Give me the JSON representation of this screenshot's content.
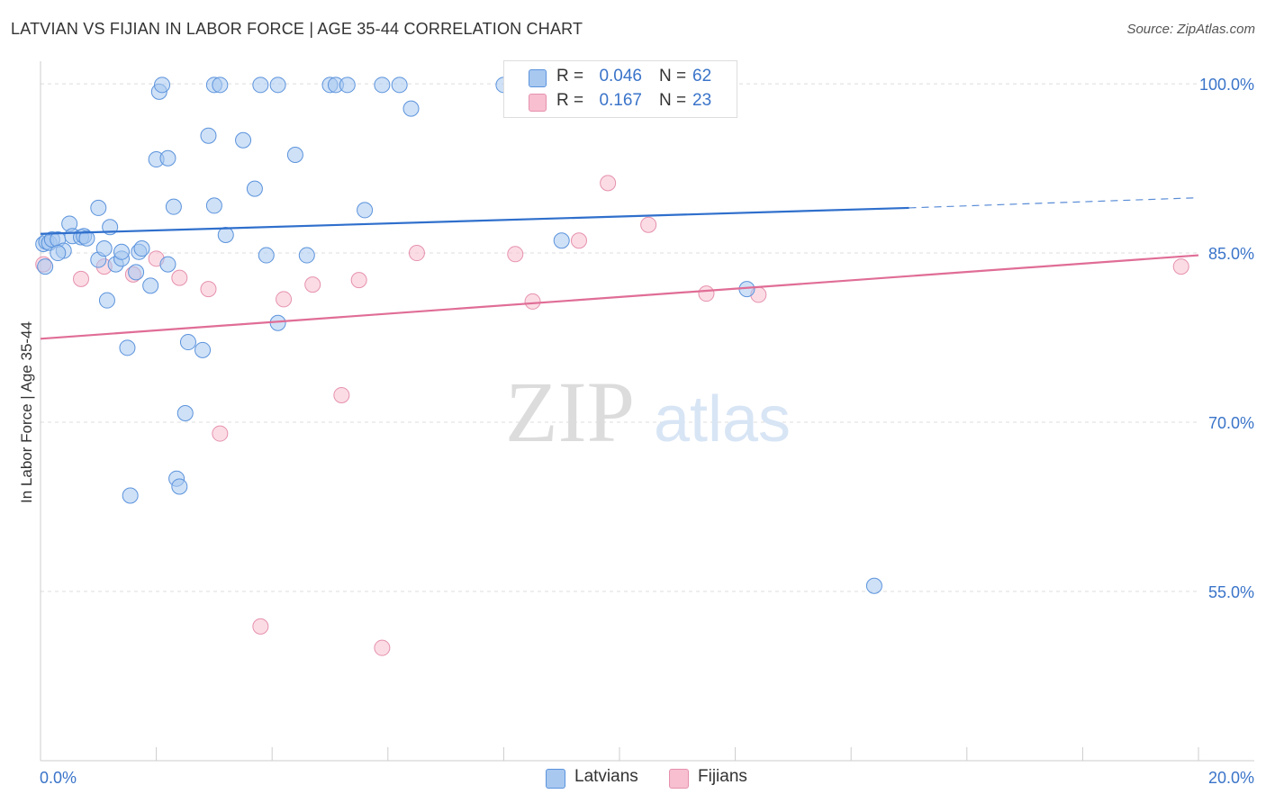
{
  "title": "LATVIAN VS FIJIAN IN LABOR FORCE | AGE 35-44 CORRELATION CHART",
  "source": "Source: ZipAtlas.com",
  "watermark": {
    "zip": "ZIP",
    "atlas": "atlas"
  },
  "legend": {
    "r_label": "R =",
    "n_label": "N =",
    "latvians": {
      "r": "0.046",
      "n": "62"
    },
    "fijians": {
      "r": "0.167",
      "n": "23"
    }
  },
  "bottom_legend": {
    "latvians": "Latvians",
    "fijians": "Fijians"
  },
  "colors": {
    "latvian_fill": "#a8c8f0",
    "latvian_stroke": "#5b93dc",
    "latvian_line": "#2f6fcc",
    "fijian_fill": "#f7bfd0",
    "fijian_stroke": "#e691ad",
    "fijian_line": "#e06d96",
    "tick_label": "#3a74c9"
  },
  "chart_data": {
    "type": "scatter",
    "title": "LATVIAN VS FIJIAN IN LABOR FORCE | AGE 35-44 CORRELATION CHART",
    "xlabel": "",
    "ylabel": "In Labor Force | Age 35-44",
    "xlim": [
      0,
      20
    ],
    "ylim": [
      40,
      102
    ],
    "x_tick_labels": [
      {
        "value": 0,
        "label": "0.0%"
      },
      {
        "value": 20,
        "label": "20.0%"
      }
    ],
    "y_tick_labels": [
      {
        "value": 100,
        "label": "100.0%"
      },
      {
        "value": 85,
        "label": "85.0%"
      },
      {
        "value": 70,
        "label": "70.0%"
      },
      {
        "value": 55,
        "label": "55.0%"
      }
    ],
    "grid": true,
    "series": [
      {
        "name": "Latvians",
        "r": 0.046,
        "n": 62,
        "trend": {
          "x0": 0,
          "y0": 86.7,
          "x1": 15,
          "y1": 89.0,
          "dashed_to_x": 20,
          "dashed_to_y": 89.9
        },
        "points": [
          [
            0.05,
            85.8
          ],
          [
            0.08,
            83.8
          ],
          [
            0.1,
            86.0
          ],
          [
            0.15,
            85.9
          ],
          [
            0.2,
            86.2
          ],
          [
            0.3,
            86.2
          ],
          [
            0.4,
            85.2
          ],
          [
            0.5,
            87.6
          ],
          [
            0.55,
            86.5
          ],
          [
            0.7,
            86.4
          ],
          [
            0.75,
            86.5
          ],
          [
            0.8,
            86.3
          ],
          [
            1.0,
            89.0
          ],
          [
            1.0,
            84.4
          ],
          [
            1.1,
            85.4
          ],
          [
            1.15,
            80.8
          ],
          [
            1.2,
            87.3
          ],
          [
            1.3,
            84.0
          ],
          [
            1.4,
            84.5
          ],
          [
            1.4,
            85.1
          ],
          [
            1.5,
            76.6
          ],
          [
            1.65,
            83.3
          ],
          [
            1.7,
            85.1
          ],
          [
            1.75,
            85.4
          ],
          [
            1.9,
            82.1
          ],
          [
            2.0,
            93.3
          ],
          [
            2.05,
            99.3
          ],
          [
            2.1,
            99.9
          ],
          [
            2.2,
            84.0
          ],
          [
            2.3,
            89.1
          ],
          [
            2.35,
            65.0
          ],
          [
            2.4,
            64.3
          ],
          [
            2.5,
            70.8
          ],
          [
            2.55,
            77.1
          ],
          [
            2.8,
            76.4
          ],
          [
            2.9,
            95.4
          ],
          [
            3.0,
            89.2
          ],
          [
            3.0,
            99.9
          ],
          [
            3.1,
            99.9
          ],
          [
            3.2,
            86.6
          ],
          [
            3.5,
            95.0
          ],
          [
            3.7,
            90.7
          ],
          [
            3.8,
            99.9
          ],
          [
            3.9,
            84.8
          ],
          [
            4.1,
            99.9
          ],
          [
            4.1,
            78.8
          ],
          [
            4.4,
            93.7
          ],
          [
            4.6,
            84.8
          ],
          [
            5.0,
            99.9
          ],
          [
            5.1,
            99.9
          ],
          [
            5.3,
            99.9
          ],
          [
            5.6,
            88.8
          ],
          [
            5.9,
            99.9
          ],
          [
            6.2,
            99.9
          ],
          [
            6.4,
            97.8
          ],
          [
            8.0,
            99.9
          ],
          [
            9.0,
            86.1
          ],
          [
            12.2,
            81.8
          ],
          [
            14.4,
            55.5
          ],
          [
            0.3,
            85.0
          ],
          [
            1.55,
            63.5
          ],
          [
            2.2,
            93.4
          ]
        ]
      },
      {
        "name": "Fijians",
        "r": 0.167,
        "n": 23,
        "trend": {
          "x0": 0,
          "y0": 77.4,
          "x1": 20,
          "y1": 84.8
        },
        "points": [
          [
            0.05,
            84.0
          ],
          [
            0.7,
            82.7
          ],
          [
            1.1,
            83.8
          ],
          [
            1.6,
            83.1
          ],
          [
            2.0,
            84.5
          ],
          [
            2.4,
            82.8
          ],
          [
            2.9,
            81.8
          ],
          [
            3.1,
            69.0
          ],
          [
            3.8,
            51.9
          ],
          [
            4.2,
            80.9
          ],
          [
            4.7,
            82.2
          ],
          [
            5.2,
            72.4
          ],
          [
            5.5,
            82.6
          ],
          [
            5.9,
            50.0
          ],
          [
            6.5,
            85.0
          ],
          [
            8.2,
            84.9
          ],
          [
            8.5,
            80.7
          ],
          [
            9.3,
            86.1
          ],
          [
            9.8,
            91.2
          ],
          [
            10.5,
            87.5
          ],
          [
            11.5,
            81.4
          ],
          [
            12.4,
            81.3
          ],
          [
            19.7,
            83.8
          ]
        ]
      }
    ]
  }
}
